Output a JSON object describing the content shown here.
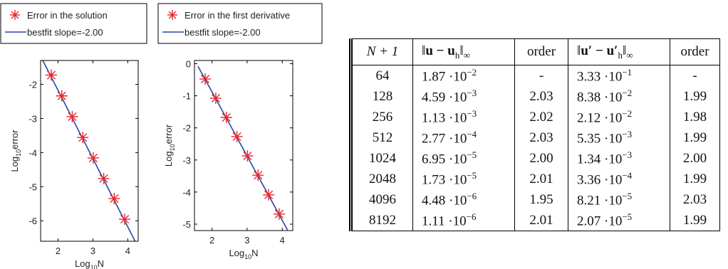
{
  "chart_data": [
    {
      "type": "scatter",
      "title": "",
      "xlabel": "Log",
      "xlabel_sub": "10",
      "xlabel_tail": "N",
      "ylabel": "Log",
      "ylabel_sub": "10",
      "ylabel_tail": "error",
      "xlim": [
        1.5,
        4.3
      ],
      "ylim": [
        -6.6,
        -1.3
      ],
      "xticks": [
        2,
        3,
        4
      ],
      "yticks": [
        -2,
        -3,
        -4,
        -5,
        -6
      ],
      "grid": false,
      "legend_placement": "top-left",
      "series": [
        {
          "name": "Error in the solution",
          "marker": "asterisk",
          "color": "#e8252b",
          "x": [
            1.806,
            2.107,
            2.408,
            2.709,
            3.01,
            3.311,
            3.612,
            3.913
          ],
          "y": [
            -1.728,
            -2.338,
            -2.947,
            -3.558,
            -4.158,
            -4.762,
            -5.349,
            -5.955
          ]
        },
        {
          "name": "bestfit slope=-2.00",
          "marker": "line",
          "color": "#2a45a6",
          "x": [
            1.5,
            4.3
          ],
          "y": [
            -1.175,
            -6.775
          ]
        }
      ]
    },
    {
      "type": "scatter",
      "title": "",
      "xlabel": "Log",
      "xlabel_sub": "10",
      "xlabel_tail": "N",
      "ylabel": "Log",
      "ylabel_sub": "10",
      "ylabel_tail": "error",
      "xlim": [
        1.5,
        4.3
      ],
      "ylim": [
        -5.2,
        0.1
      ],
      "xticks": [
        2,
        3,
        4
      ],
      "yticks": [
        0,
        -1,
        -2,
        -3,
        -4,
        -5
      ],
      "grid": false,
      "legend_placement": "top-left",
      "series": [
        {
          "name": "Error in the first derivative",
          "marker": "asterisk",
          "color": "#e8252b",
          "x": [
            1.806,
            2.107,
            2.408,
            2.709,
            3.01,
            3.311,
            3.612,
            3.913
          ],
          "y": [
            -0.478,
            -1.077,
            -1.674,
            -2.272,
            -2.873,
            -3.474,
            -4.086,
            -4.684
          ]
        },
        {
          "name": "bestfit slope=-2.00",
          "marker": "line",
          "color": "#2a45a6",
          "x": [
            1.6,
            4.15
          ],
          "y": [
            -0.08,
            -5.18
          ]
        }
      ]
    }
  ],
  "table": {
    "headers": {
      "n": "N + 1",
      "err1_left": "‖",
      "err1_body": "u − u",
      "err1_sub": "h",
      "err1_right": "‖",
      "err1_norm": "∞",
      "order1": "order",
      "err2_body": "u′ − u′",
      "err2_sub": "h",
      "err2_norm": "∞",
      "order2": "order"
    },
    "rows": [
      {
        "n": "64",
        "e1_mant": "1.87 ·10",
        "e1_exp": "−2",
        "o1": "-",
        "e2_mant": "3.33 ·10",
        "e2_exp": "−1",
        "o2": "-"
      },
      {
        "n": "128",
        "e1_mant": "4.59 ·10",
        "e1_exp": "−3",
        "o1": "2.03",
        "e2_mant": "8.38 ·10",
        "e2_exp": "−2",
        "o2": "1.99"
      },
      {
        "n": "256",
        "e1_mant": "1.13 ·10",
        "e1_exp": "−3",
        "o1": "2.02",
        "e2_mant": "2.12 ·10",
        "e2_exp": "−2",
        "o2": "1.98"
      },
      {
        "n": "512",
        "e1_mant": "2.77 ·10",
        "e1_exp": "−4",
        "o1": "2.03",
        "e2_mant": "5.35 ·10",
        "e2_exp": "−3",
        "o2": "1.99"
      },
      {
        "n": "1024",
        "e1_mant": "6.95 ·10",
        "e1_exp": "−5",
        "o1": "2.00",
        "e2_mant": "1.34 ·10",
        "e2_exp": "−3",
        "o2": "2.00"
      },
      {
        "n": "2048",
        "e1_mant": "1.73 ·10",
        "e1_exp": "−5",
        "o1": "2.01",
        "e2_mant": "3.36 ·10",
        "e2_exp": "−4",
        "o2": "1.99"
      },
      {
        "n": "4096",
        "e1_mant": "4.48 ·10",
        "e1_exp": "−6",
        "o1": "1.95",
        "e2_mant": "8.21 ·10",
        "e2_exp": "−5",
        "o2": "2.03"
      },
      {
        "n": "8192",
        "e1_mant": "1.11 ·10",
        "e1_exp": "−6",
        "o1": "2.01",
        "e2_mant": "2.07 ·10",
        "e2_exp": "−5",
        "o2": "1.99"
      }
    ]
  }
}
